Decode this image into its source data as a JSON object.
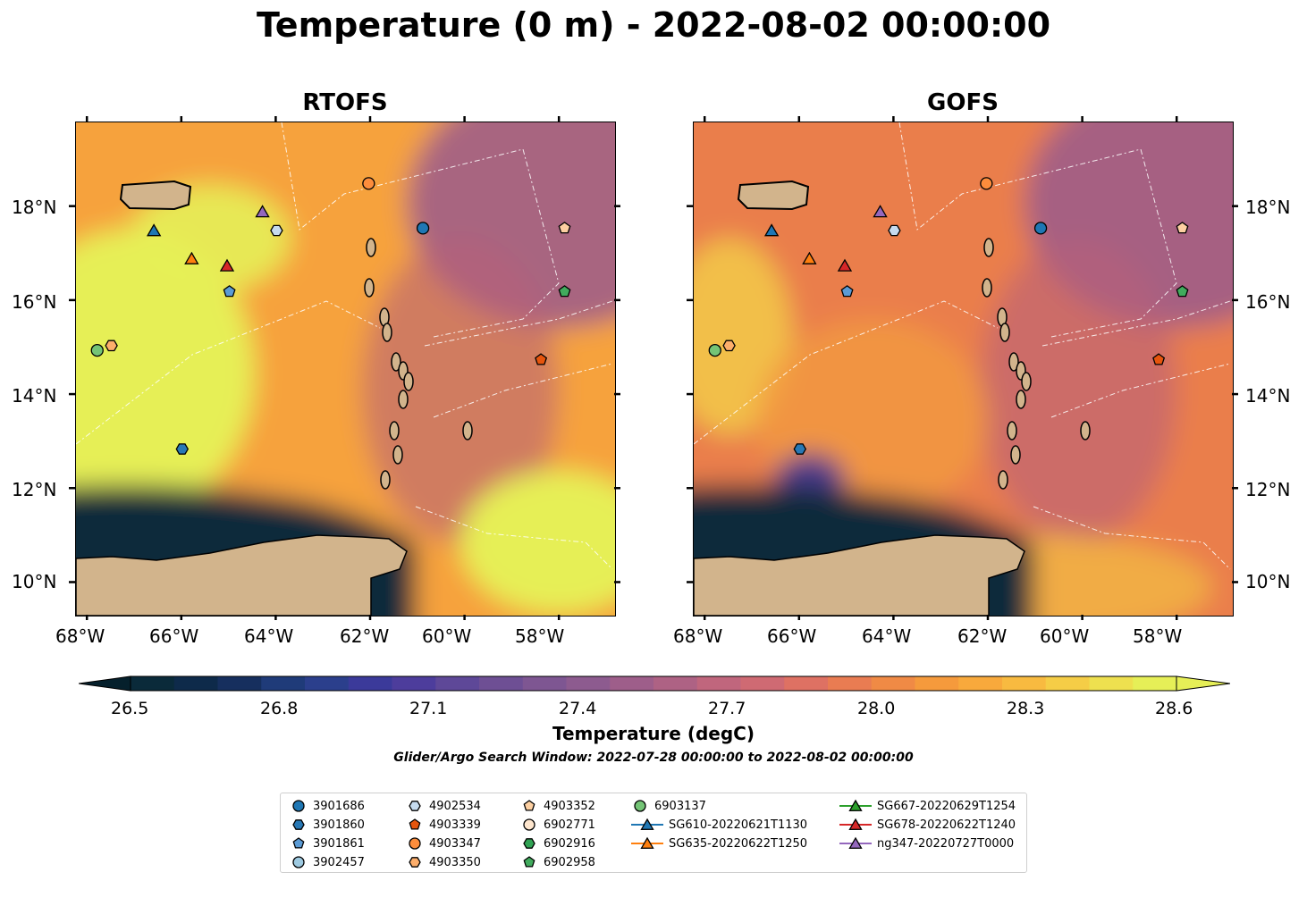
{
  "title": "Temperature (0 m) - 2022-08-02 00:00:00",
  "panels": [
    {
      "name": "RTOFS"
    },
    {
      "name": "GOFS"
    }
  ],
  "x_ticks": [
    "68°W",
    "66°W",
    "64°W",
    "62°W",
    "60°W",
    "58°W"
  ],
  "y_ticks": [
    "18°N",
    "16°N",
    "14°N",
    "12°N",
    "10°N"
  ],
  "colorbar": {
    "ticks": [
      "26.5",
      "26.8",
      "27.1",
      "27.4",
      "27.7",
      "28.0",
      "28.3",
      "28.6"
    ],
    "label": "Temperature (degC)",
    "colors": [
      "#0a2a3a",
      "#0e2a4a",
      "#162f5e",
      "#1f3b79",
      "#2b3f8c",
      "#3b3a9a",
      "#4d3d9c",
      "#5e4898",
      "#6e4f94",
      "#7e5692",
      "#8d5b8f",
      "#9e5e8a",
      "#ae6284",
      "#c0667d",
      "#cf6a73",
      "#de7163",
      "#e97c52",
      "#f08a45",
      "#f59a3c",
      "#f8a93c",
      "#f8ba40",
      "#f5cd46",
      "#eee04f",
      "#e6ef57"
    ]
  },
  "subtitle": "Glider/Argo Search Window: 2022-07-28 00:00:00 to 2022-08-02 00:00:00",
  "legend": [
    {
      "label": "3901686",
      "marker": "circle",
      "color": "#1f77b4"
    },
    {
      "label": "3901860",
      "marker": "hexagon",
      "color": "#2878b5"
    },
    {
      "label": "3901861",
      "marker": "pentagon",
      "color": "#5b9bd5"
    },
    {
      "label": "3902457",
      "marker": "circle",
      "color": "#9ecae1"
    },
    {
      "label": "4902534",
      "marker": "hexagon",
      "color": "#c6dbef"
    },
    {
      "label": "4903339",
      "marker": "pentagon",
      "color": "#e6550d"
    },
    {
      "label": "4903347",
      "marker": "circle",
      "color": "#fd8d3c"
    },
    {
      "label": "4903350",
      "marker": "hexagon",
      "color": "#fdae6b"
    },
    {
      "label": "4903352",
      "marker": "pentagon",
      "color": "#fdd0a2"
    },
    {
      "label": "6902771",
      "marker": "circle",
      "color": "#fee6ce"
    },
    {
      "label": "6902916",
      "marker": "hexagon",
      "color": "#31a354"
    },
    {
      "label": "6902958",
      "marker": "pentagon",
      "color": "#41ab5d"
    },
    {
      "label": "6903137",
      "marker": "circle",
      "color": "#74c476"
    },
    {
      "label": "SG610-20220621T1130",
      "marker": "triangle",
      "color": "#1f77b4",
      "line": true
    },
    {
      "label": "SG635-20220622T1250",
      "marker": "triangle",
      "color": "#ff7f0e",
      "line": true
    },
    {
      "label": "SG667-20220629T1254",
      "marker": "triangle",
      "color": "#2ca02c",
      "line": true
    },
    {
      "label": "SG678-20220622T1240",
      "marker": "triangle",
      "color": "#d62728",
      "line": true
    },
    {
      "label": "ng347-20220727T0000",
      "marker": "triangle",
      "color": "#9467bd",
      "line": true
    }
  ],
  "markers": [
    {
      "id": "4903347",
      "lon": -62.05,
      "lat": 18.5,
      "marker": "circle",
      "color": "#fd8d3c"
    },
    {
      "id": "3901686",
      "lon": -60.9,
      "lat": 17.55,
      "marker": "circle",
      "color": "#1f77b4"
    },
    {
      "id": "4903352",
      "lon": -57.9,
      "lat": 17.55,
      "marker": "pentagon",
      "color": "#fdd0a2"
    },
    {
      "id": "ng347-20220727T0000",
      "lon": -64.3,
      "lat": 17.9,
      "marker": "triangle",
      "color": "#9467bd"
    },
    {
      "id": "4902534",
      "lon": -64.0,
      "lat": 17.5,
      "marker": "hexagon",
      "color": "#c6dbef"
    },
    {
      "id": "SG610-20220621T1130",
      "lon": -66.6,
      "lat": 17.5,
      "marker": "triangle",
      "color": "#1f77b4"
    },
    {
      "id": "SG635-20220622T1250",
      "lon": -65.8,
      "lat": 16.9,
      "marker": "triangle",
      "color": "#ff7f0e"
    },
    {
      "id": "SG678-20220622T1240",
      "lon": -65.05,
      "lat": 16.75,
      "marker": "triangle",
      "color": "#d62728"
    },
    {
      "id": "3901861",
      "lon": -65.0,
      "lat": 16.2,
      "marker": "pentagon",
      "color": "#5b9bd5"
    },
    {
      "id": "6902958",
      "lon": -57.9,
      "lat": 16.2,
      "marker": "pentagon",
      "color": "#41ab5d"
    },
    {
      "id": "4903350",
      "lon": -67.5,
      "lat": 15.05,
      "marker": "hexagon",
      "color": "#fdae6b"
    },
    {
      "id": "6903137",
      "lon": -67.8,
      "lat": 14.95,
      "marker": "circle",
      "color": "#74c476"
    },
    {
      "id": "4903339",
      "lon": -58.4,
      "lat": 14.75,
      "marker": "pentagon",
      "color": "#e6550d"
    },
    {
      "id": "3901860",
      "lon": -66.0,
      "lat": 12.85,
      "marker": "hexagon",
      "color": "#2878b5"
    }
  ],
  "map_colors": {
    "land": "#d2b48c",
    "ocean_warm": "#e6ef57",
    "ocean_mid": "#f5a040",
    "ocean_cool": "#9a5a8c",
    "ocean_cold": "#0a2a3a"
  }
}
